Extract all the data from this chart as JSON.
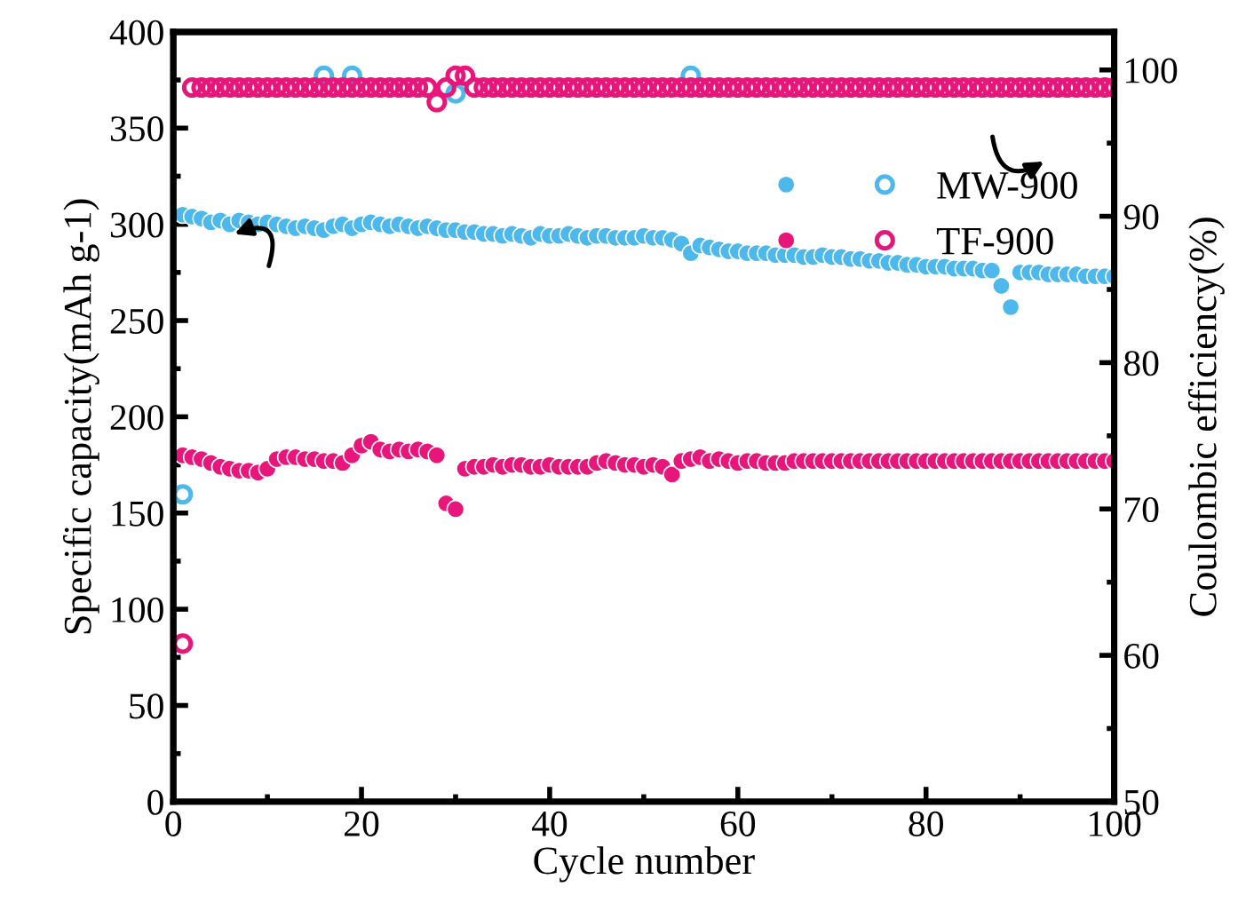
{
  "chart_data": {
    "type": "scatter",
    "xlabel": "Cycle number",
    "ylabel": "Specific capacity(mAh g-1)",
    "y2label": "Coulombic efficiency(%)",
    "x": [
      1,
      2,
      3,
      4,
      5,
      6,
      7,
      8,
      9,
      10,
      11,
      12,
      13,
      14,
      15,
      16,
      17,
      18,
      19,
      20,
      21,
      22,
      23,
      24,
      25,
      26,
      27,
      28,
      29,
      30,
      31,
      32,
      33,
      34,
      35,
      36,
      37,
      38,
      39,
      40,
      41,
      42,
      43,
      44,
      45,
      46,
      47,
      48,
      49,
      50,
      51,
      52,
      53,
      54,
      55,
      56,
      57,
      58,
      59,
      60,
      61,
      62,
      63,
      64,
      65,
      66,
      67,
      68,
      69,
      70,
      71,
      72,
      73,
      74,
      75,
      76,
      77,
      78,
      79,
      80,
      81,
      82,
      83,
      84,
      85,
      86,
      87,
      88,
      89,
      90,
      91,
      92,
      93,
      94,
      95,
      96,
      97,
      98,
      99,
      100
    ],
    "xlim": [
      0,
      100
    ],
    "xticks": [
      0,
      20,
      40,
      60,
      80,
      100
    ],
    "ylim": [
      0,
      400
    ],
    "yticks": [
      0,
      50,
      100,
      150,
      200,
      250,
      300,
      350,
      400
    ],
    "y2lim": [
      50,
      102.6
    ],
    "y2ticks": [
      50,
      60,
      70,
      80,
      90,
      100
    ],
    "legend": "right",
    "marker": "circle",
    "series": [
      {
        "name": "MW-900",
        "color": "#4db8ec",
        "values": [
          305,
          304,
          303,
          301,
          302,
          300,
          302,
          301,
          300,
          301,
          300,
          299,
          298,
          299,
          298,
          297,
          299,
          300,
          298,
          300,
          301,
          300,
          299,
          300,
          299,
          298,
          299,
          298,
          297,
          297,
          296,
          296,
          295,
          295,
          294,
          295,
          294,
          293,
          295,
          294,
          294,
          295,
          294,
          293,
          294,
          294,
          293,
          293,
          293,
          294,
          293,
          293,
          292,
          290,
          285,
          289,
          288,
          287,
          286,
          286,
          285,
          285,
          285,
          284,
          284,
          284,
          283,
          283,
          284,
          283,
          283,
          282,
          282,
          281,
          281,
          280,
          280,
          279,
          279,
          278,
          278,
          278,
          277,
          277,
          277,
          276,
          276,
          268,
          257,
          275,
          275,
          275,
          274,
          274,
          274,
          274,
          273,
          273,
          273,
          273
        ]
      },
      {
        "name": "TF-900",
        "color": "#e8157a",
        "values": [
          180,
          179,
          178,
          176,
          174,
          173,
          172,
          172,
          171,
          173,
          178,
          179,
          179,
          178,
          178,
          177,
          177,
          176,
          180,
          185,
          187,
          183,
          182,
          183,
          182,
          183,
          182,
          180,
          155,
          152,
          173,
          174,
          174,
          175,
          174,
          175,
          175,
          174,
          174,
          175,
          174,
          174,
          174,
          174,
          176,
          177,
          176,
          175,
          175,
          174,
          175,
          174,
          170,
          177,
          178,
          179,
          177,
          178,
          177,
          176,
          177,
          177,
          176,
          176,
          176,
          177,
          177,
          177,
          177,
          177,
          177,
          177,
          177,
          177,
          177,
          177,
          177,
          177,
          177,
          177,
          177,
          177,
          177,
          177,
          177,
          177,
          177,
          177,
          177,
          177,
          177,
          177,
          177,
          177,
          177,
          177,
          177,
          177,
          177,
          177
        ]
      },
      {
        "color": "#4db8ec",
        "axis": "y2",
        "marker": "circle",
        "values": [
          71.0,
          null,
          null,
          null,
          null,
          null,
          null,
          null,
          null,
          null,
          null,
          null,
          null,
          null,
          null,
          99.6,
          null,
          null,
          99.6,
          null,
          null,
          null,
          null,
          null,
          null,
          null,
          null,
          null,
          null,
          98.4,
          null,
          null,
          null,
          null,
          null,
          null,
          null,
          null,
          null,
          null,
          null,
          null,
          null,
          null,
          null,
          null,
          null,
          null,
          null,
          null,
          null,
          null,
          null,
          null,
          99.6,
          null,
          null,
          null,
          null,
          null,
          null,
          null,
          null,
          null,
          null,
          null,
          null,
          null,
          null,
          null,
          null,
          null,
          null,
          null,
          null,
          null,
          null,
          null,
          null,
          null,
          null,
          null,
          null,
          null,
          null,
          null,
          null,
          null,
          null,
          null,
          null,
          null,
          null,
          null,
          null,
          null,
          null,
          null,
          null,
          null
        ]
      },
      {
        "color": "#e8157a",
        "axis": "y2",
        "marker": "circle",
        "values": [
          60.8,
          98.8,
          98.8,
          98.8,
          98.8,
          98.8,
          98.8,
          98.8,
          98.8,
          98.8,
          98.8,
          98.8,
          98.8,
          98.8,
          98.8,
          98.8,
          98.8,
          98.8,
          98.8,
          98.8,
          98.8,
          98.8,
          98.8,
          98.8,
          98.8,
          98.8,
          98.8,
          97.8,
          98.8,
          99.6,
          99.6,
          98.8,
          98.8,
          98.8,
          98.8,
          98.8,
          98.8,
          98.8,
          98.8,
          98.8,
          98.8,
          98.8,
          98.8,
          98.8,
          98.8,
          98.8,
          98.8,
          98.8,
          98.8,
          98.8,
          98.8,
          98.8,
          98.8,
          98.8,
          98.8,
          98.8,
          98.8,
          98.8,
          98.8,
          98.8,
          98.8,
          98.8,
          98.8,
          98.8,
          98.8,
          98.8,
          98.8,
          98.8,
          98.8,
          98.8,
          98.8,
          98.8,
          98.8,
          98.8,
          98.8,
          98.8,
          98.8,
          98.8,
          98.8,
          98.8,
          98.8,
          98.8,
          98.8,
          98.8,
          98.8,
          98.8,
          98.8,
          98.8,
          98.8,
          98.8,
          98.8,
          98.8,
          98.8,
          98.8,
          98.8,
          98.8,
          98.8,
          98.8,
          98.8,
          98.8
        ]
      }
    ]
  }
}
